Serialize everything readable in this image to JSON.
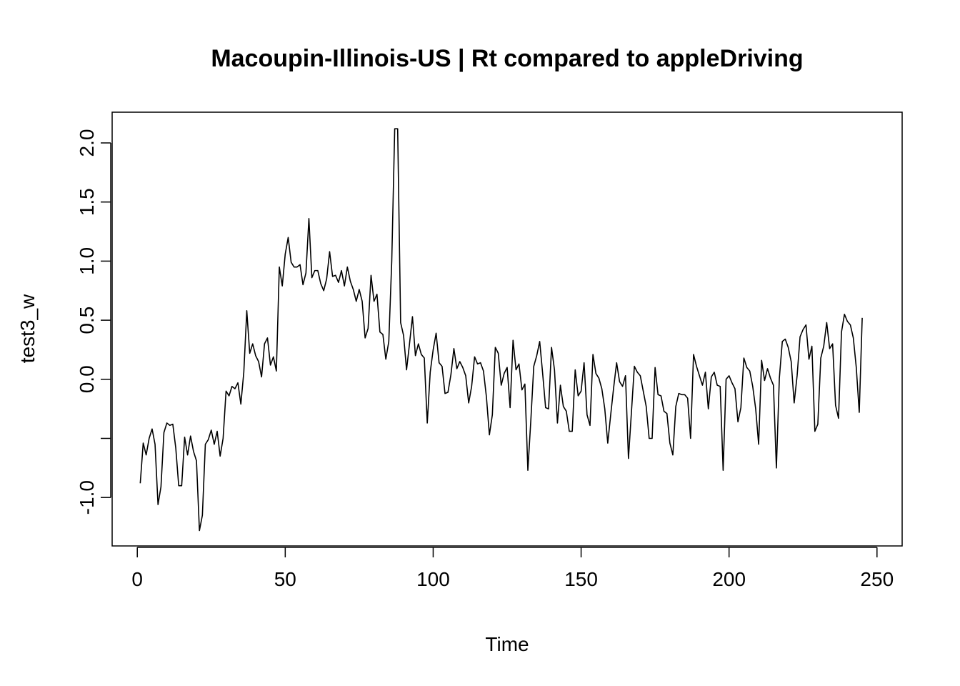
{
  "chart_data": {
    "type": "line",
    "title": "Macoupin-Illinois-US | Rt compared to appleDriving",
    "xlabel": "Time",
    "ylabel": "test3_w",
    "xlim": [
      -8.5,
      258.5
    ],
    "ylim": [
      -1.41,
      2.26
    ],
    "x_ticks": [
      0,
      50,
      100,
      150,
      200,
      250
    ],
    "x_tick_labels": [
      "0",
      "50",
      "100",
      "150",
      "200",
      "250"
    ],
    "y_ticks": [
      -1.0,
      -0.5,
      0.0,
      0.5,
      1.0,
      1.5,
      2.0
    ],
    "y_tick_labels": [
      "-1.0",
      "",
      "0.0",
      "0.5",
      "1.0",
      "1.5",
      "2.0"
    ],
    "grid": false,
    "legend": "none",
    "line_color": "#000000",
    "series": [
      {
        "x_start": 1,
        "values": [
          -0.88,
          -0.54,
          -0.64,
          -0.5,
          -0.42,
          -0.55,
          -1.06,
          -0.91,
          -0.45,
          -0.37,
          -0.39,
          -0.38,
          -0.58,
          -0.9,
          -0.9,
          -0.49,
          -0.64,
          -0.48,
          -0.61,
          -0.69,
          -1.28,
          -1.15,
          -0.55,
          -0.51,
          -0.43,
          -0.55,
          -0.44,
          -0.65,
          -0.5,
          -0.1,
          -0.14,
          -0.06,
          -0.08,
          -0.03,
          -0.21,
          0.06,
          0.58,
          0.22,
          0.3,
          0.2,
          0.15,
          0.02,
          0.3,
          0.35,
          0.12,
          0.19,
          0.07,
          0.95,
          0.79,
          1.06,
          1.2,
          0.99,
          0.95,
          0.95,
          0.97,
          0.8,
          0.9,
          1.36,
          0.86,
          0.92,
          0.92,
          0.81,
          0.75,
          0.85,
          1.08,
          0.87,
          0.88,
          0.82,
          0.92,
          0.79,
          0.95,
          0.83,
          0.76,
          0.66,
          0.76,
          0.66,
          0.35,
          0.43,
          0.88,
          0.66,
          0.72,
          0.4,
          0.38,
          0.17,
          0.32,
          1.0,
          2.12,
          2.12,
          0.48,
          0.37,
          0.08,
          0.3,
          0.53,
          0.2,
          0.3,
          0.21,
          0.18,
          -0.37,
          0.06,
          0.25,
          0.39,
          0.14,
          0.11,
          -0.12,
          -0.11,
          0.04,
          0.26,
          0.09,
          0.15,
          0.1,
          0.03,
          -0.2,
          -0.06,
          0.19,
          0.13,
          0.14,
          0.07,
          -0.15,
          -0.47,
          -0.3,
          0.27,
          0.22,
          -0.05,
          0.05,
          0.1,
          -0.24,
          0.33,
          0.08,
          0.13,
          -0.09,
          -0.04,
          -0.77,
          -0.35,
          0.11,
          0.2,
          0.32,
          0.05,
          -0.24,
          -0.25,
          0.27,
          0.08,
          -0.37,
          -0.05,
          -0.23,
          -0.27,
          -0.44,
          -0.44,
          0.08,
          -0.14,
          -0.1,
          0.14,
          -0.3,
          -0.39,
          0.21,
          0.05,
          0.01,
          -0.08,
          -0.25,
          -0.54,
          -0.3,
          -0.07,
          0.14,
          -0.02,
          -0.06,
          0.03,
          -0.67,
          -0.28,
          0.11,
          0.06,
          0.03,
          -0.1,
          -0.23,
          -0.5,
          -0.5,
          0.1,
          -0.13,
          -0.14,
          -0.27,
          -0.29,
          -0.54,
          -0.64,
          -0.23,
          -0.12,
          -0.13,
          -0.13,
          -0.16,
          -0.5,
          0.21,
          0.11,
          0.03,
          -0.05,
          0.06,
          -0.25,
          0.02,
          0.06,
          -0.05,
          -0.06,
          -0.77,
          0.0,
          0.03,
          -0.03,
          -0.08,
          -0.36,
          -0.24,
          0.18,
          0.1,
          0.07,
          -0.06,
          -0.25,
          -0.55,
          0.16,
          -0.01,
          0.09,
          0.01,
          -0.05,
          -0.75,
          0.01,
          0.32,
          0.34,
          0.27,
          0.15,
          -0.2,
          0.03,
          0.36,
          0.42,
          0.46,
          0.17,
          0.28,
          -0.44,
          -0.38,
          0.18,
          0.28,
          0.48,
          0.26,
          0.3,
          -0.22,
          -0.33,
          0.4,
          0.55,
          0.49,
          0.46,
          0.35,
          0.1,
          -0.28,
          0.52
        ]
      }
    ]
  }
}
